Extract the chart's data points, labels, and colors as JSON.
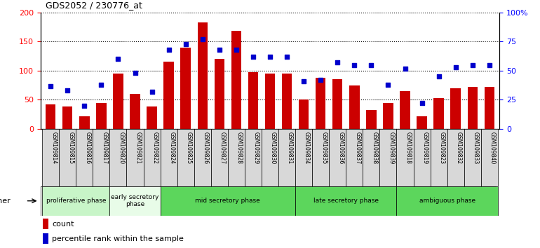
{
  "title": "GDS2052 / 230776_at",
  "samples": [
    "GSM109814",
    "GSM109815",
    "GSM109816",
    "GSM109817",
    "GSM109820",
    "GSM109821",
    "GSM109822",
    "GSM109824",
    "GSM109825",
    "GSM109826",
    "GSM109827",
    "GSM109828",
    "GSM109829",
    "GSM109830",
    "GSM109831",
    "GSM109834",
    "GSM109835",
    "GSM109836",
    "GSM109837",
    "GSM109838",
    "GSM109839",
    "GSM109818",
    "GSM109819",
    "GSM109823",
    "GSM109832",
    "GSM109833",
    "GSM109840"
  ],
  "counts": [
    42,
    38,
    22,
    45,
    95,
    60,
    38,
    115,
    140,
    183,
    120,
    168,
    97,
    95,
    95,
    50,
    88,
    85,
    75,
    33,
    45,
    65,
    22,
    53,
    70,
    72,
    72
  ],
  "percentiles": [
    37,
    33,
    20,
    38,
    60,
    48,
    32,
    68,
    73,
    77,
    68,
    68,
    62,
    62,
    62,
    41,
    42,
    57,
    55,
    55,
    38,
    52,
    22,
    45,
    53,
    55,
    55
  ],
  "bar_color": "#cc0000",
  "dot_color": "#0000cc",
  "phases": [
    {
      "name": "proliferative phase",
      "start": 0,
      "end": 4,
      "color": "#c8f5c8"
    },
    {
      "name": "early secretory\nphase",
      "start": 4,
      "end": 7,
      "color": "#e8fce8"
    },
    {
      "name": "mid secretory phase",
      "start": 7,
      "end": 15,
      "color": "#5cd65c"
    },
    {
      "name": "late secretory phase",
      "start": 15,
      "end": 21,
      "color": "#5cd65c"
    },
    {
      "name": "ambiguous phase",
      "start": 21,
      "end": 27,
      "color": "#5cd65c"
    }
  ],
  "ylim_left": [
    0,
    200
  ],
  "ylim_right": [
    0,
    100
  ],
  "yticks_left": [
    0,
    50,
    100,
    150,
    200
  ],
  "yticks_right": [
    0,
    25,
    50,
    75,
    100
  ],
  "yticklabels_right": [
    "0",
    "25",
    "50",
    "75",
    "100%"
  ],
  "bg_color": "#f0f0f0"
}
